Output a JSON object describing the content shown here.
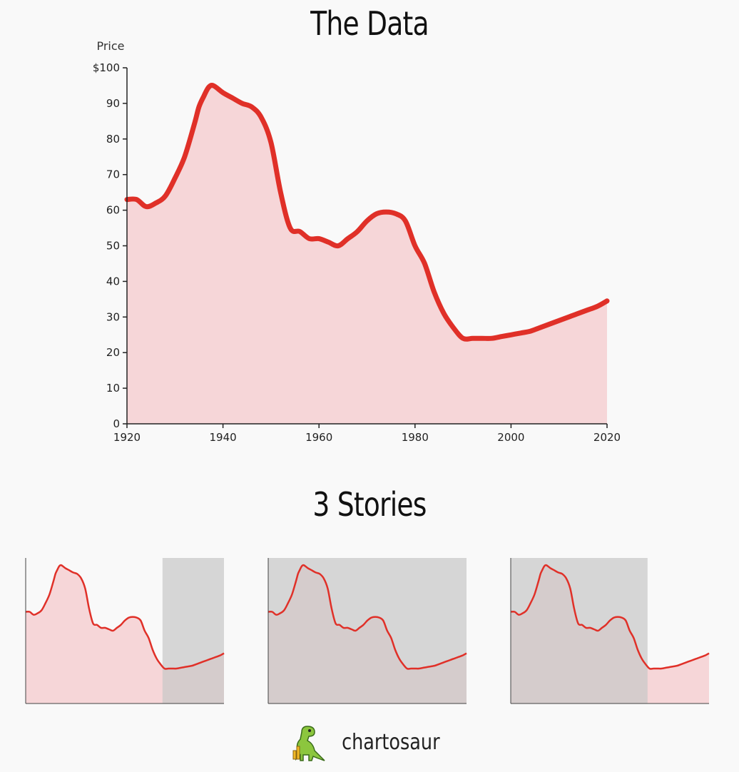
{
  "header": {
    "title": "The Data"
  },
  "stories": {
    "title": "3 Stories"
  },
  "brand": {
    "name": "chartosaur",
    "logo_icon": "dinosaur-icon"
  },
  "colors": {
    "line": "#e03028",
    "fill": "#f6d6d8",
    "shade": "#c8c8c8",
    "axis": "#222222",
    "background": "#f9f9f9"
  },
  "chart_data": [
    {
      "type": "area",
      "title": "The Data",
      "ylabel": "Price",
      "ylim": [
        0,
        100
      ],
      "xlim": [
        1920,
        2020
      ],
      "y_ticks": [
        "$100",
        "90",
        "80",
        "70",
        "60",
        "50",
        "40",
        "30",
        "20",
        "10",
        "0"
      ],
      "y_tick_values": [
        100,
        90,
        80,
        70,
        60,
        50,
        40,
        30,
        20,
        10,
        0
      ],
      "x_ticks": [
        "1920",
        "1940",
        "1960",
        "1980",
        "2000",
        "2020"
      ],
      "x_tick_values": [
        1920,
        1940,
        1960,
        1980,
        2000,
        2020
      ],
      "x": [
        1920,
        1922,
        1924,
        1926,
        1928,
        1930,
        1932,
        1934,
        1935,
        1936,
        1937,
        1938,
        1940,
        1942,
        1944,
        1946,
        1948,
        1950,
        1952,
        1954,
        1956,
        1958,
        1960,
        1962,
        1964,
        1966,
        1968,
        1970,
        1972,
        1974,
        1976,
        1978,
        1980,
        1982,
        1984,
        1986,
        1988,
        1990,
        1992,
        1994,
        1996,
        1998,
        2000,
        2002,
        2004,
        2006,
        2008,
        2010,
        2012,
        2014,
        2016,
        2018,
        2020
      ],
      "y": [
        63,
        63,
        61,
        62,
        64,
        69,
        75,
        84,
        89,
        92,
        94.5,
        95,
        93,
        91.5,
        90,
        89,
        86,
        79,
        65,
        55,
        54,
        52,
        52,
        51,
        50,
        52,
        54,
        57,
        59,
        59.5,
        59,
        57,
        50,
        45,
        37,
        31,
        27,
        24,
        24,
        24,
        24,
        24.5,
        25,
        25.5,
        26,
        27,
        28,
        29,
        30,
        31,
        32,
        33,
        34.5
      ],
      "grid": false
    },
    {
      "type": "area",
      "x": [
        1920,
        1922,
        1924,
        1926,
        1928,
        1930,
        1932,
        1934,
        1935,
        1936,
        1937,
        1938,
        1940,
        1942,
        1944,
        1946,
        1948,
        1950,
        1952,
        1954,
        1956,
        1958,
        1960,
        1962,
        1964,
        1966,
        1968,
        1970,
        1972,
        1974,
        1976,
        1978,
        1980,
        1982,
        1984,
        1986,
        1988,
        1990,
        1992,
        1994,
        1996,
        1998,
        2000,
        2002,
        2004,
        2006,
        2008,
        2010,
        2012,
        2014,
        2016,
        2018,
        2020
      ],
      "highlight_range": [
        1989,
        2020
      ]
    },
    {
      "type": "area",
      "highlight_range": [
        1920,
        2020
      ]
    },
    {
      "type": "area",
      "highlight_range": [
        1920,
        1989
      ]
    }
  ]
}
